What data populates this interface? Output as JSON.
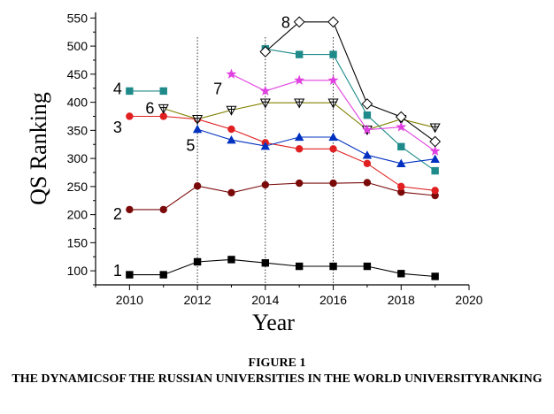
{
  "figure": {
    "label": "FIGURE 1",
    "caption": "THE DYNAMICSOF THE RUSSIAN UNIVERSITIES IN THE WORLD UNIVERSITYRANKING"
  },
  "chart_data": {
    "type": "line",
    "title": "",
    "xlabel": "Year",
    "ylabel": "QS Ranking",
    "xlim": [
      2009,
      2020
    ],
    "ylim": [
      75,
      560
    ],
    "xticks": [
      2010,
      2012,
      2014,
      2016,
      2018,
      2020
    ],
    "yticks": [
      100,
      150,
      200,
      250,
      300,
      350,
      400,
      450,
      500,
      550
    ],
    "grid": false,
    "reference_lines_x": [
      2012,
      2014,
      2016
    ],
    "series": [
      {
        "name": "1",
        "color": "#000000",
        "marker": "square",
        "points": [
          [
            2010,
            93
          ],
          [
            2011,
            93
          ],
          [
            2012,
            116
          ],
          [
            2013,
            120
          ],
          [
            2014,
            114
          ],
          [
            2015,
            108
          ],
          [
            2016,
            108
          ],
          [
            2017,
            108
          ],
          [
            2018,
            95
          ],
          [
            2019,
            90
          ]
        ]
      },
      {
        "name": "2",
        "color": "#7a0a0a",
        "marker": "circle",
        "points": [
          [
            2010,
            209
          ],
          [
            2011,
            209
          ],
          [
            2012,
            251
          ],
          [
            2013,
            239
          ],
          [
            2014,
            253
          ],
          [
            2015,
            256
          ],
          [
            2016,
            256
          ],
          [
            2017,
            257
          ],
          [
            2018,
            240
          ],
          [
            2019,
            234
          ]
        ]
      },
      {
        "name": "3",
        "color": "#e02020",
        "marker": "circle",
        "points": [
          [
            2010,
            375
          ],
          [
            2011,
            375
          ],
          [
            2012,
            370
          ],
          [
            2013,
            352
          ],
          [
            2014,
            328
          ],
          [
            2015,
            317
          ],
          [
            2016,
            317
          ],
          [
            2017,
            291
          ],
          [
            2018,
            250
          ],
          [
            2019,
            243
          ]
        ]
      },
      {
        "name": "4",
        "color": "#1f8a8a",
        "marker": "square",
        "points": [
          [
            2010,
            420
          ],
          [
            2011,
            420
          ],
          [
            2014,
            495
          ],
          [
            2015,
            485
          ],
          [
            2016,
            485
          ],
          [
            2017,
            377
          ],
          [
            2018,
            321
          ],
          [
            2019,
            278
          ]
        ]
      },
      {
        "name": "5",
        "color": "#0030c0",
        "marker": "triangle",
        "points": [
          [
            2012,
            352
          ],
          [
            2013,
            333
          ],
          [
            2014,
            322
          ],
          [
            2015,
            338
          ],
          [
            2016,
            338
          ],
          [
            2017,
            306
          ],
          [
            2018,
            291
          ],
          [
            2019,
            299
          ]
        ]
      },
      {
        "name": "6",
        "color": "#808000",
        "marker": "triangle-down",
        "points": [
          [
            2011,
            389
          ],
          [
            2012,
            370
          ],
          [
            2013,
            386
          ],
          [
            2014,
            399
          ],
          [
            2015,
            399
          ],
          [
            2016,
            399
          ],
          [
            2017,
            351
          ],
          [
            2018,
            370
          ],
          [
            2019,
            355
          ]
        ]
      },
      {
        "name": "7",
        "color": "#e040e0",
        "marker": "star",
        "points": [
          [
            2013,
            450
          ],
          [
            2014,
            420
          ],
          [
            2015,
            439
          ],
          [
            2016,
            439
          ],
          [
            2017,
            351
          ],
          [
            2018,
            356
          ],
          [
            2019,
            313
          ]
        ]
      },
      {
        "name": "8",
        "color": "#000000",
        "marker": "diamond",
        "points": [
          [
            2014,
            490
          ],
          [
            2015,
            543
          ],
          [
            2016,
            543
          ],
          [
            2017,
            397
          ],
          [
            2018,
            374
          ],
          [
            2019,
            330
          ]
        ]
      }
    ]
  }
}
